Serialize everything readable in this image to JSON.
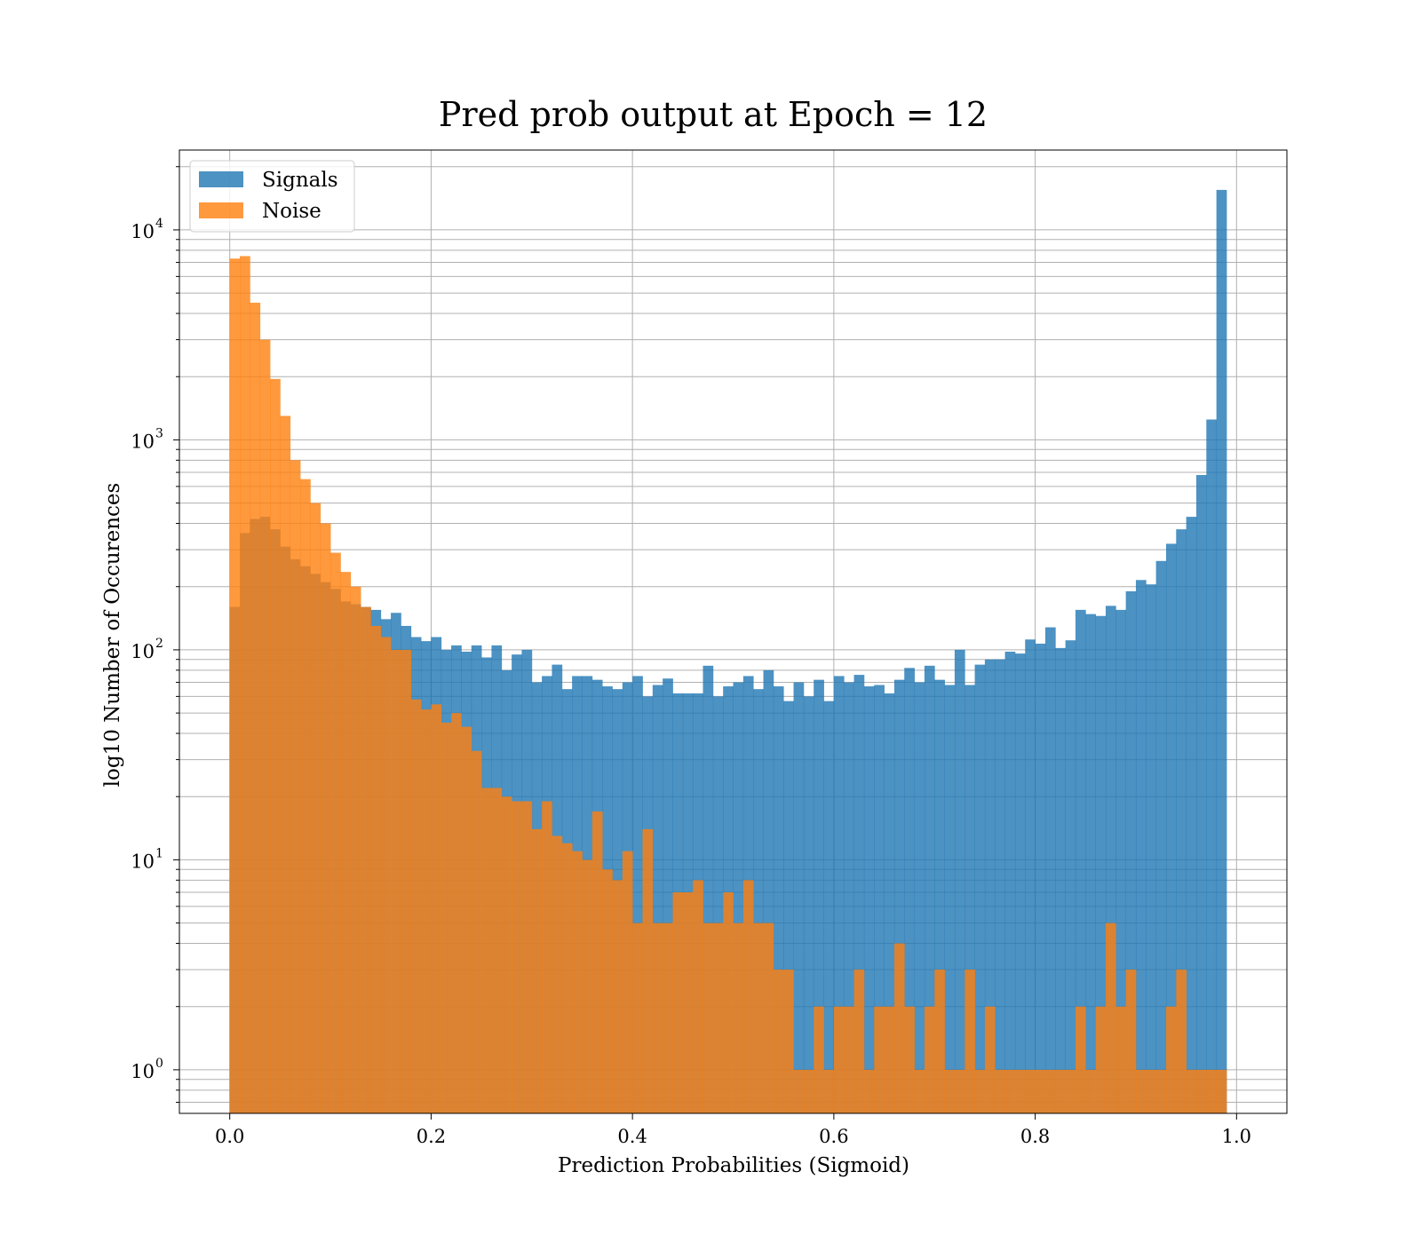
{
  "chart_data": {
    "type": "bar",
    "title": "Pred prob output at Epoch = 12",
    "xlabel": "Prediction Probabilities (Sigmoid)",
    "ylabel": "log10 Number of Occurences",
    "xlim": [
      -0.05,
      1.05
    ],
    "ylim": [
      0.62,
      24000
    ],
    "yscale": "log",
    "grid": true,
    "legend_position": "top-left",
    "bin_width": 0.01,
    "x_ticks": [
      "0.0",
      "0.2",
      "0.4",
      "0.6",
      "0.8",
      "1.0"
    ],
    "x_tick_values": [
      0.0,
      0.2,
      0.4,
      0.6,
      0.8,
      1.0
    ],
    "y_ticks": [
      {
        "base": "10",
        "exp": "0",
        "value": 1
      },
      {
        "base": "10",
        "exp": "1",
        "value": 10
      },
      {
        "base": "10",
        "exp": "2",
        "value": 100
      },
      {
        "base": "10",
        "exp": "3",
        "value": 1000
      },
      {
        "base": "10",
        "exp": "4",
        "value": 10000
      }
    ],
    "series": [
      {
        "name": "Signals",
        "color": "#1f77b4",
        "values": [
          160,
          360,
          420,
          430,
          375,
          310,
          270,
          250,
          230,
          210,
          195,
          170,
          165,
          160,
          155,
          140,
          150,
          130,
          115,
          110,
          115,
          100,
          105,
          98,
          105,
          92,
          105,
          80,
          95,
          100,
          70,
          75,
          85,
          65,
          75,
          75,
          72,
          67,
          65,
          70,
          75,
          60,
          68,
          73,
          62,
          62,
          62,
          84,
          60,
          67,
          70,
          75,
          65,
          80,
          67,
          57,
          70,
          60,
          72,
          57,
          75,
          70,
          76,
          67,
          68,
          62,
          72,
          82,
          70,
          84,
          72,
          68,
          100,
          68,
          85,
          90,
          90,
          98,
          96,
          112,
          107,
          128,
          102,
          111,
          155,
          148,
          145,
          162,
          155,
          190,
          215,
          205,
          265,
          320,
          375,
          430,
          680,
          1250,
          15500
        ]
      },
      {
        "name": "Noise",
        "color": "#ff7f0e",
        "values": [
          7300,
          7500,
          4500,
          3000,
          1950,
          1300,
          800,
          650,
          500,
          400,
          290,
          235,
          200,
          160,
          130,
          115,
          100,
          100,
          58,
          52,
          55,
          45,
          50,
          43,
          33,
          22,
          22,
          20,
          19,
          19,
          14,
          19,
          13,
          12,
          11,
          10,
          17,
          9,
          8,
          11,
          5,
          14,
          5,
          5,
          7,
          7,
          8,
          5,
          5,
          7,
          5,
          8,
          5,
          5,
          3,
          3,
          1,
          1,
          2,
          1,
          2,
          2,
          3,
          1,
          2,
          2,
          4,
          2,
          1,
          2,
          3,
          1,
          1,
          3,
          1,
          2,
          1,
          1,
          1,
          1,
          1,
          1,
          1,
          1,
          2,
          1,
          2,
          5,
          2,
          3,
          1,
          1,
          1,
          2,
          3,
          1,
          1,
          1,
          1
        ]
      }
    ]
  }
}
